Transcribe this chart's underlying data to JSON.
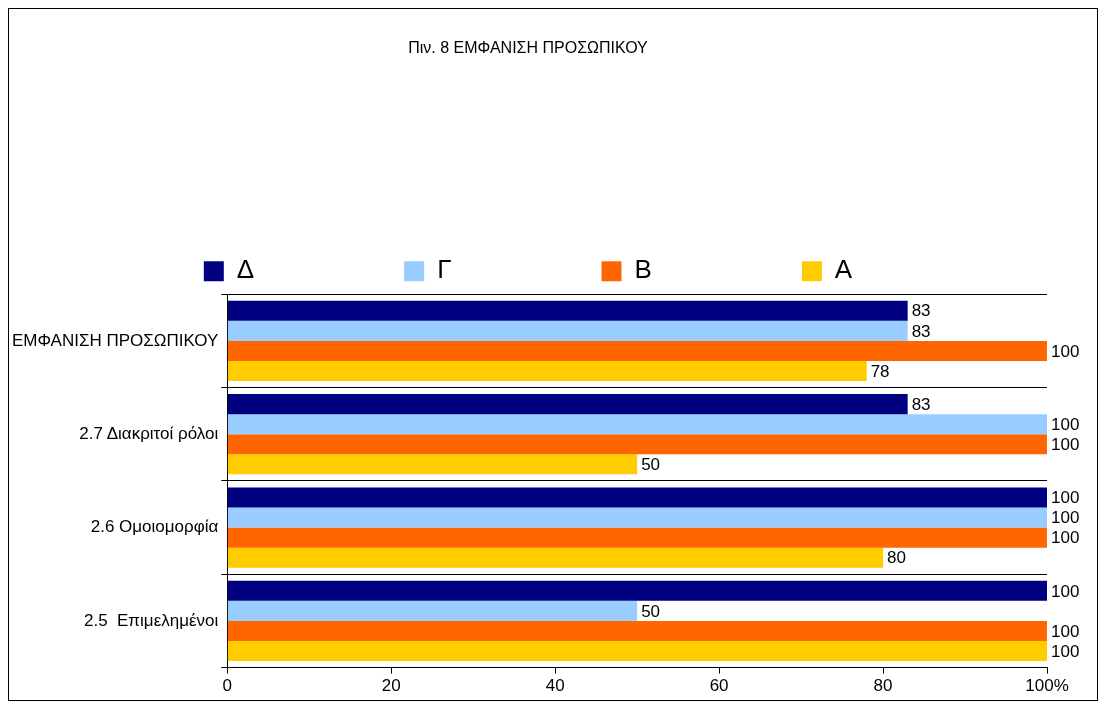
{
  "chart_data": {
    "type": "bar",
    "orientation": "horizontal",
    "title": "Πιν. 8 ΕΜΦΑΝΙΣΗ ΠΡΟΣΩΠΙΚΟΥ",
    "categories": [
      "ΕΜΦΑΝΙΣΗ ΠΡΟΣΩΠΙΚΟΥ",
      "2.7 Διακριτοί ρόλοι",
      "2.6 Ομοιομορφία",
      "2.5  Επιμελημένοι"
    ],
    "series": [
      {
        "name": "Α",
        "color": "#ffcc00",
        "values": [
          78,
          50,
          80,
          100
        ]
      },
      {
        "name": "Β",
        "color": "#ff6600",
        "values": [
          100,
          100,
          100,
          100
        ]
      },
      {
        "name": "Γ",
        "color": "#99ccff",
        "values": [
          83,
          100,
          100,
          50
        ]
      },
      {
        "name": "Δ",
        "color": "#000080",
        "values": [
          83,
          83,
          100,
          100
        ]
      }
    ],
    "xlim": [
      0,
      100
    ],
    "xticks": [
      0,
      20,
      40,
      60,
      80,
      {
        "value": 100,
        "label": "100%"
      }
    ],
    "grid": "y",
    "legend": "top",
    "data_labels": true
  }
}
